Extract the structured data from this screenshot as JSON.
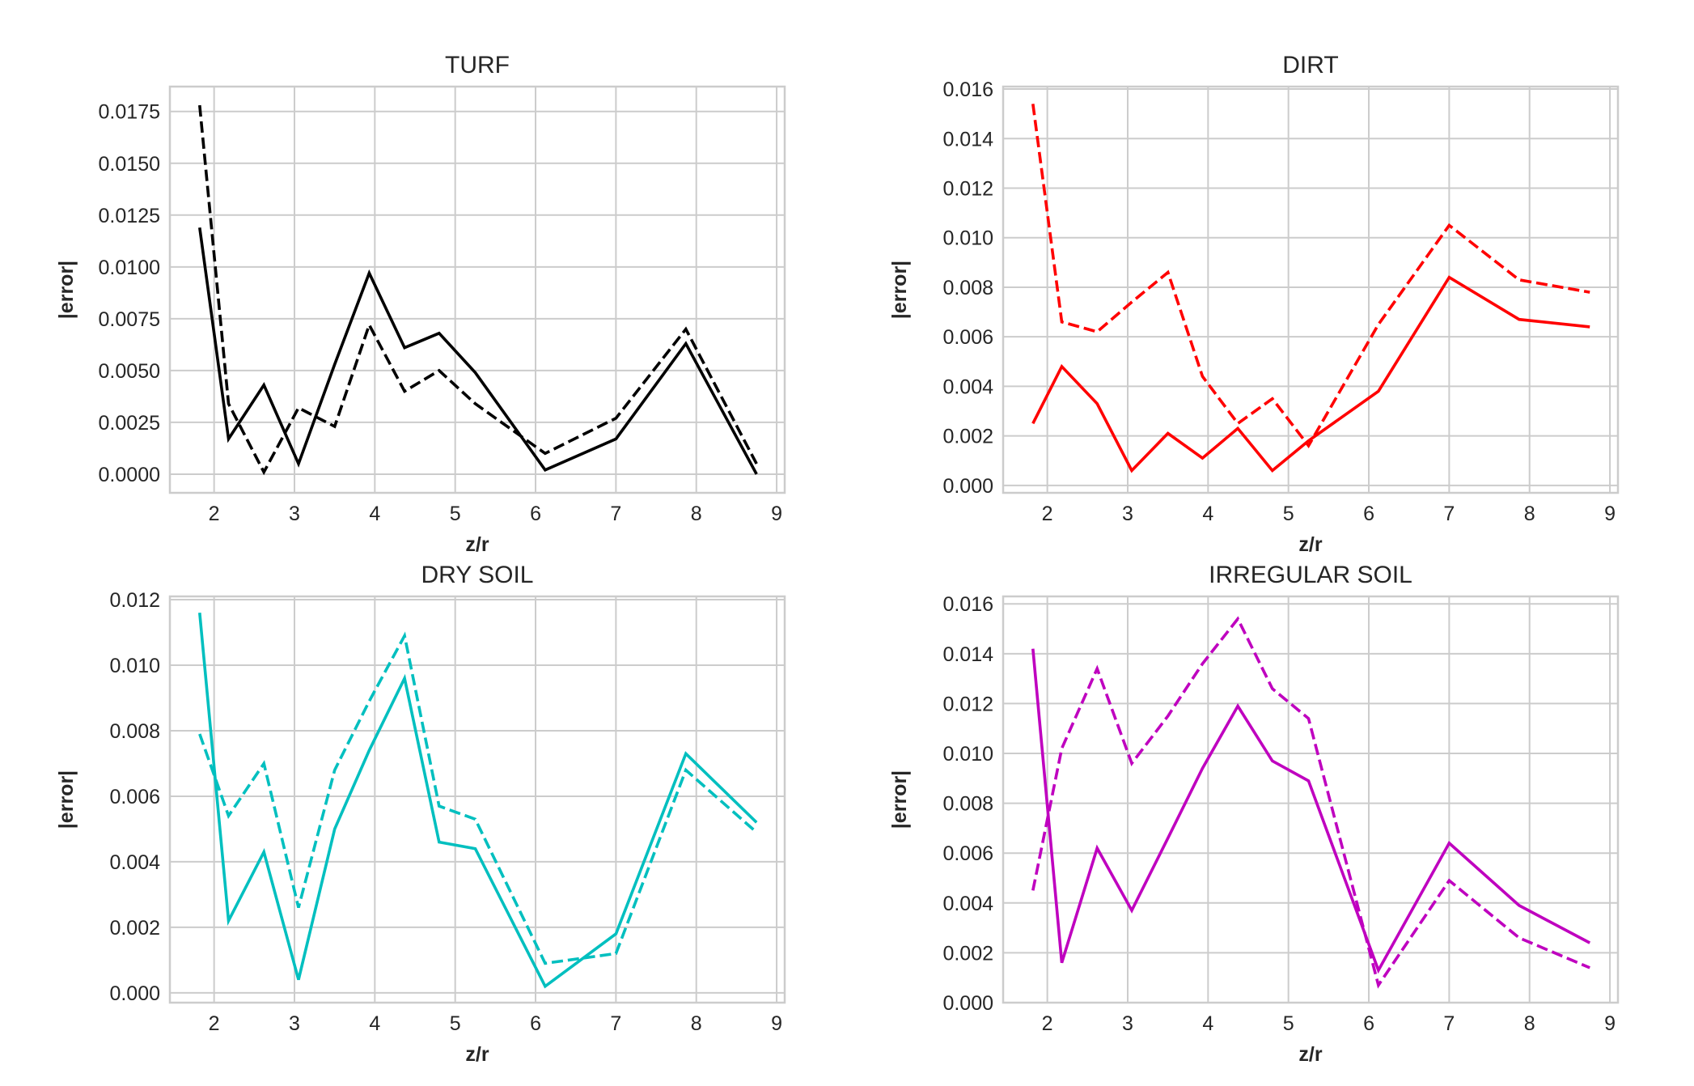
{
  "chart_data": [
    {
      "type": "line",
      "title": "TURF",
      "xlabel": "z/r",
      "ylabel": "|error|",
      "color": "#000000",
      "xlim": [
        1.45,
        9.1
      ],
      "ylim": [
        -0.0009,
        0.0187
      ],
      "xticks": [
        2,
        3,
        4,
        5,
        6,
        7,
        8,
        9
      ],
      "xtick_labels": [
        "2",
        "3",
        "4",
        "5",
        "6",
        "7",
        "8",
        "9"
      ],
      "yticks": [
        0,
        0.0025,
        0.005,
        0.0075,
        0.01,
        0.0125,
        0.015,
        0.0175
      ],
      "ytick_labels": [
        "0.0000",
        "0.0025",
        "0.0050",
        "0.0075",
        "0.0100",
        "0.0125",
        "0.0150",
        "0.0175"
      ],
      "grid": true,
      "series": [
        {
          "style": "solid",
          "x": [
            1.82,
            2.18,
            2.62,
            3.05,
            3.5,
            3.93,
            4.37,
            4.8,
            5.25,
            6.12,
            7.0,
            7.87,
            8.75
          ],
          "y": [
            0.0119,
            0.0017,
            0.0043,
            0.0005,
            0.0053,
            0.0097,
            0.0061,
            0.0068,
            0.0049,
            0.0002,
            0.0017,
            0.0063,
            0.0
          ]
        },
        {
          "style": "dashed",
          "x": [
            1.82,
            2.18,
            2.62,
            3.05,
            3.5,
            3.93,
            4.37,
            4.8,
            5.25,
            6.12,
            7.0,
            7.87,
            8.75
          ],
          "y": [
            0.0178,
            0.0034,
            0.0001,
            0.0032,
            0.0023,
            0.0072,
            0.004,
            0.005,
            0.0034,
            0.001,
            0.0027,
            0.007,
            0.0005
          ]
        }
      ]
    },
    {
      "type": "line",
      "title": "DIRT",
      "xlabel": "z/r",
      "ylabel": "|error|",
      "color": "#ff0000",
      "xlim": [
        1.45,
        9.1
      ],
      "ylim": [
        -0.0003,
        0.0161
      ],
      "xticks": [
        2,
        3,
        4,
        5,
        6,
        7,
        8,
        9
      ],
      "xtick_labels": [
        "2",
        "3",
        "4",
        "5",
        "6",
        "7",
        "8",
        "9"
      ],
      "yticks": [
        0,
        0.002,
        0.004,
        0.006,
        0.008,
        0.01,
        0.012,
        0.014,
        0.016
      ],
      "ytick_labels": [
        "0.000",
        "0.002",
        "0.004",
        "0.006",
        "0.008",
        "0.010",
        "0.012",
        "0.014",
        "0.016"
      ],
      "grid": true,
      "series": [
        {
          "style": "solid",
          "x": [
            1.82,
            2.18,
            2.62,
            3.05,
            3.5,
            3.93,
            4.37,
            4.8,
            5.25,
            6.12,
            7.0,
            7.87,
            8.75
          ],
          "y": [
            0.0025,
            0.0048,
            0.0033,
            0.0006,
            0.0021,
            0.0011,
            0.0023,
            0.0006,
            0.0018,
            0.0038,
            0.0084,
            0.0067,
            0.0064
          ]
        },
        {
          "style": "dashed",
          "x": [
            1.82,
            2.18,
            2.62,
            3.05,
            3.5,
            3.93,
            4.37,
            4.8,
            5.25,
            6.12,
            7.0,
            7.87,
            8.75
          ],
          "y": [
            0.0154,
            0.0066,
            0.0062,
            0.0074,
            0.0086,
            0.0044,
            0.0025,
            0.0035,
            0.0016,
            0.0065,
            0.0105,
            0.0083,
            0.0078
          ]
        }
      ]
    },
    {
      "type": "line",
      "title": "DRY SOIL",
      "xlabel": "z/r",
      "ylabel": "|error|",
      "color": "#00bfbf",
      "xlim": [
        1.45,
        9.1
      ],
      "ylim": [
        -0.0003,
        0.0121
      ],
      "xticks": [
        2,
        3,
        4,
        5,
        6,
        7,
        8,
        9
      ],
      "xtick_labels": [
        "2",
        "3",
        "4",
        "5",
        "6",
        "7",
        "8",
        "9"
      ],
      "yticks": [
        0,
        0.002,
        0.004,
        0.006,
        0.008,
        0.01,
        0.012
      ],
      "ytick_labels": [
        "0.000",
        "0.002",
        "0.004",
        "0.006",
        "0.008",
        "0.010",
        "0.012"
      ],
      "grid": true,
      "series": [
        {
          "style": "solid",
          "x": [
            1.82,
            2.18,
            2.62,
            3.05,
            3.5,
            3.93,
            4.37,
            4.8,
            5.25,
            6.12,
            7.0,
            7.87,
            8.75
          ],
          "y": [
            0.0116,
            0.0022,
            0.0043,
            0.0004,
            0.005,
            0.0074,
            0.0096,
            0.0046,
            0.0044,
            0.0002,
            0.0018,
            0.0073,
            0.0052
          ]
        },
        {
          "style": "dashed",
          "x": [
            1.82,
            2.18,
            2.62,
            3.05,
            3.5,
            3.93,
            4.37,
            4.8,
            5.25,
            6.12,
            7.0,
            7.87,
            8.75
          ],
          "y": [
            0.0079,
            0.0054,
            0.007,
            0.0026,
            0.0068,
            0.0089,
            0.0109,
            0.0057,
            0.0053,
            0.0009,
            0.0012,
            0.0068,
            0.0049
          ]
        }
      ]
    },
    {
      "type": "line",
      "title": "IRREGULAR SOIL",
      "xlabel": "z/r",
      "ylabel": "|error|",
      "color": "#bf00bf",
      "xlim": [
        1.45,
        9.1
      ],
      "ylim": [
        0.0,
        0.0163
      ],
      "xticks": [
        2,
        3,
        4,
        5,
        6,
        7,
        8,
        9
      ],
      "xtick_labels": [
        "2",
        "3",
        "4",
        "5",
        "6",
        "7",
        "8",
        "9"
      ],
      "yticks": [
        0,
        0.002,
        0.004,
        0.006,
        0.008,
        0.01,
        0.012,
        0.014,
        0.016
      ],
      "ytick_labels": [
        "0.000",
        "0.002",
        "0.004",
        "0.006",
        "0.008",
        "0.010",
        "0.012",
        "0.014",
        "0.016"
      ],
      "grid": true,
      "series": [
        {
          "style": "solid",
          "x": [
            1.82,
            2.18,
            2.62,
            3.05,
            3.5,
            3.93,
            4.37,
            4.8,
            5.25,
            6.12,
            7.0,
            7.87,
            8.75
          ],
          "y": [
            0.0142,
            0.0016,
            0.0062,
            0.0037,
            0.0066,
            0.0094,
            0.0119,
            0.0097,
            0.0089,
            0.0013,
            0.0064,
            0.0039,
            0.0024
          ]
        },
        {
          "style": "dashed",
          "x": [
            1.82,
            2.18,
            2.62,
            3.05,
            3.5,
            3.93,
            4.37,
            4.8,
            5.25,
            6.12,
            7.0,
            7.87,
            8.75
          ],
          "y": [
            0.0045,
            0.0102,
            0.0134,
            0.0096,
            0.0115,
            0.0136,
            0.0154,
            0.0126,
            0.0114,
            0.0007,
            0.0049,
            0.0026,
            0.0014
          ]
        }
      ]
    }
  ]
}
